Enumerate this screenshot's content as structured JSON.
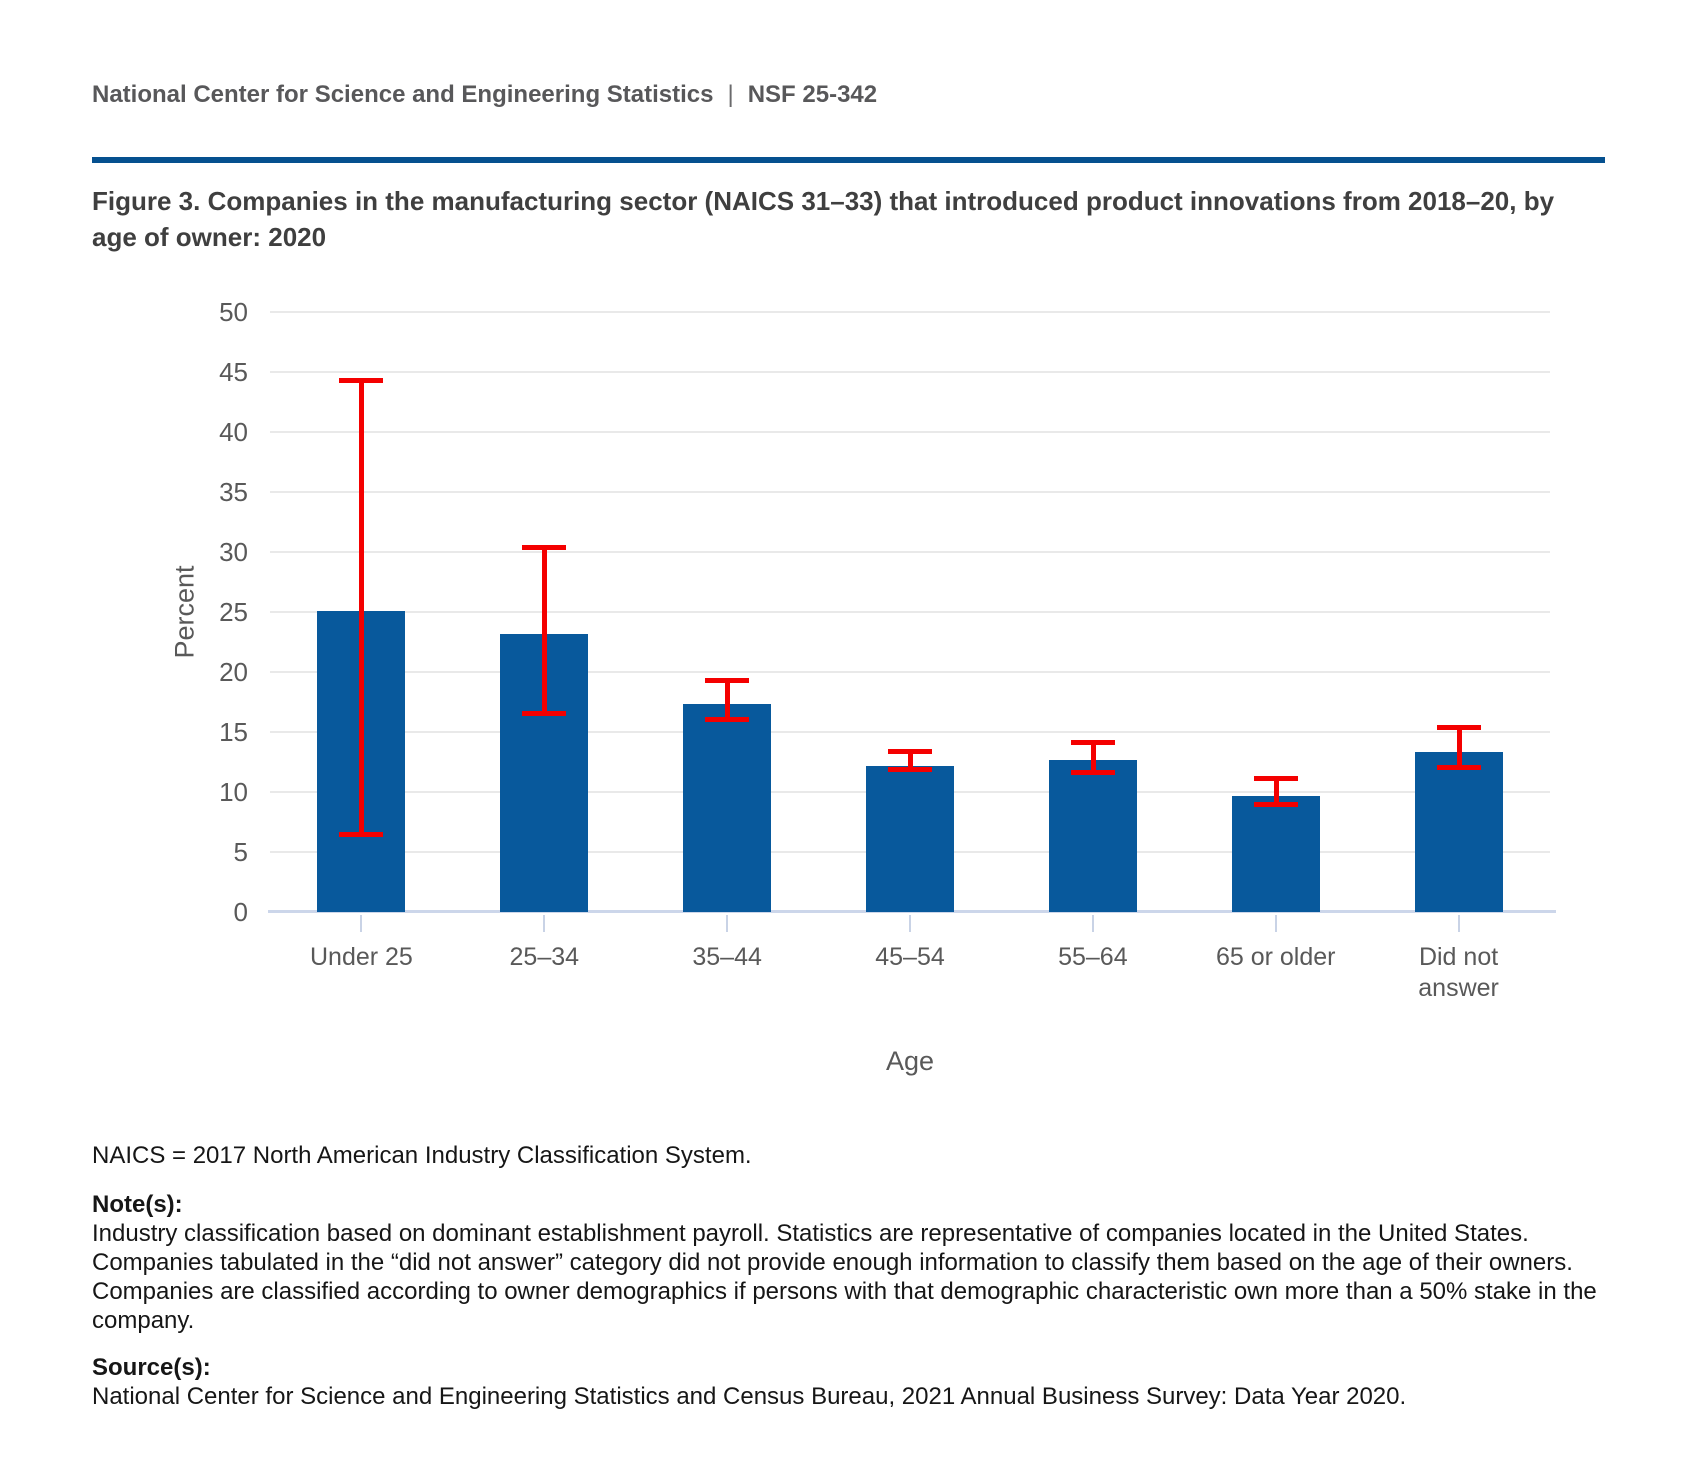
{
  "header": {
    "org": "National Center for Science and Engineering Statistics",
    "separator": "|",
    "report_number": "NSF 25-342"
  },
  "figure": {
    "title": "Figure 3. Companies in the manufacturing sector (NAICS 31–33) that introduced product innovations from 2018–20, by age of owner: 2020"
  },
  "chart_data": {
    "type": "bar",
    "title": "Companies in the manufacturing sector (NAICS 31–33) that introduced product innovations from 2018–20, by age of owner: 2020",
    "categories": [
      "Under 25",
      "25–34",
      "35–44",
      "45–54",
      "55–64",
      "65 or older",
      "Did not answer"
    ],
    "values": [
      25.1,
      23.2,
      17.3,
      12.2,
      12.7,
      9.7,
      13.3
    ],
    "error_low": [
      6.4,
      16.5,
      16.0,
      11.8,
      11.6,
      8.9,
      12.0
    ],
    "error_high": [
      44.3,
      30.4,
      19.3,
      13.4,
      14.2,
      11.2,
      15.4
    ],
    "xlabel": "Age",
    "ylabel": "Percent",
    "ylim": [
      0,
      50
    ],
    "ytick_interval": 5,
    "grid": true,
    "legend": "none",
    "bar_color": "#08599c",
    "error_color": "#f40000"
  },
  "notes": {
    "naics": "NAICS = 2017 North American Industry Classification System.",
    "notes_heading": "Note(s):",
    "notes_body": "Industry classification based on dominant establishment payroll. Statistics are representative of companies located in the United States. Companies tabulated in the “did not answer” category did not provide enough information to classify them based on the age of their owners. Companies are classified according to owner demographics if persons with that demographic characteristic own more than a 50% stake in the company.",
    "sources_heading": "Source(s):",
    "sources_body": "National Center for Science and Engineering Statistics and Census Bureau, 2021 Annual Business Survey: Data Year 2020."
  }
}
